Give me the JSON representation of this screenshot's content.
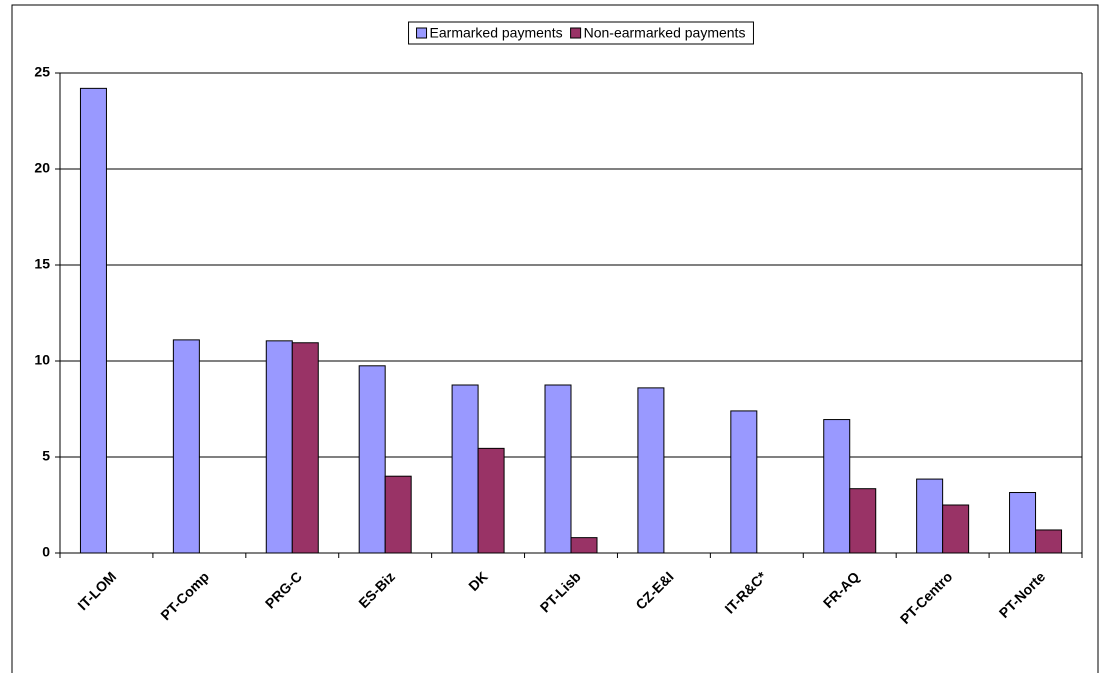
{
  "chart_data": {
    "type": "bar",
    "categories": [
      "IT-LOM",
      "PT-Comp",
      "PRG-C",
      "ES-Biz",
      "DK",
      "PT-Lisb",
      "CZ-E&I",
      "IT-R&C*",
      "FR-AQ",
      "PT-Centro",
      "PT-Norte"
    ],
    "series": [
      {
        "name": "Earmarked payments",
        "color": "#9999ff",
        "values": [
          24.2,
          11.1,
          11.05,
          9.75,
          8.75,
          8.75,
          8.6,
          7.4,
          6.95,
          3.85,
          3.15
        ]
      },
      {
        "name": "Non-earmarked payments",
        "color": "#993366",
        "values": [
          null,
          null,
          10.95,
          4.0,
          5.45,
          0.8,
          null,
          null,
          3.35,
          2.5,
          1.2
        ]
      }
    ],
    "ylim": [
      0,
      25
    ],
    "yticks": [
      0,
      5,
      10,
      15,
      20,
      25
    ],
    "grid": true,
    "legend": "top"
  }
}
